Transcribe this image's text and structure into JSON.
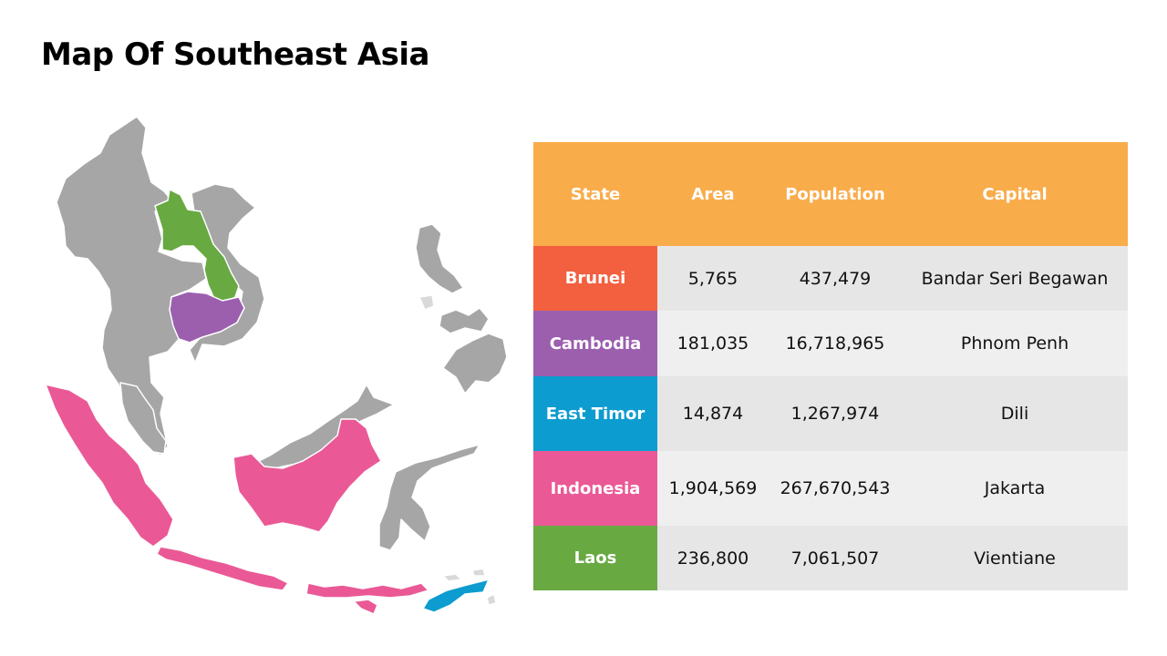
{
  "title": "Map Of Southeast Asia",
  "colors": {
    "header": "#f9ac4a",
    "brunei": "#f2603f",
    "cambodia": "#9b5fae",
    "east_timor": "#0c9ccf",
    "indonesia": "#ea5996",
    "laos": "#68a942",
    "other_land": "#a6a6a6"
  },
  "map": {
    "highlighted": [
      {
        "name": "Laos",
        "color": "#68a942"
      },
      {
        "name": "Cambodia",
        "color": "#9b5fae"
      },
      {
        "name": "Indonesia",
        "color": "#ea5996"
      },
      {
        "name": "East Timor",
        "color": "#0c9ccf"
      }
    ]
  },
  "table": {
    "headers": [
      "State",
      "Area",
      "Population",
      "Capital"
    ],
    "rows": [
      {
        "state": "Brunei",
        "area": "5,765",
        "population": "437,479",
        "capital": "Bandar Seri Begawan",
        "color": "#f2603f"
      },
      {
        "state": "Cambodia",
        "area": "181,035",
        "population": "16,718,965",
        "capital": "Phnom Penh",
        "color": "#9b5fae"
      },
      {
        "state": "East Timor",
        "area": "14,874",
        "population": "1,267,974",
        "capital": "Dili",
        "color": "#0c9ccf"
      },
      {
        "state": "Indonesia",
        "area": "1,904,569",
        "population": "267,670,543",
        "capital": "Jakarta",
        "color": "#ea5996"
      },
      {
        "state": "Laos",
        "area": "236,800",
        "population": "7,061,507",
        "capital": "Vientiane",
        "color": "#68a942"
      }
    ]
  }
}
